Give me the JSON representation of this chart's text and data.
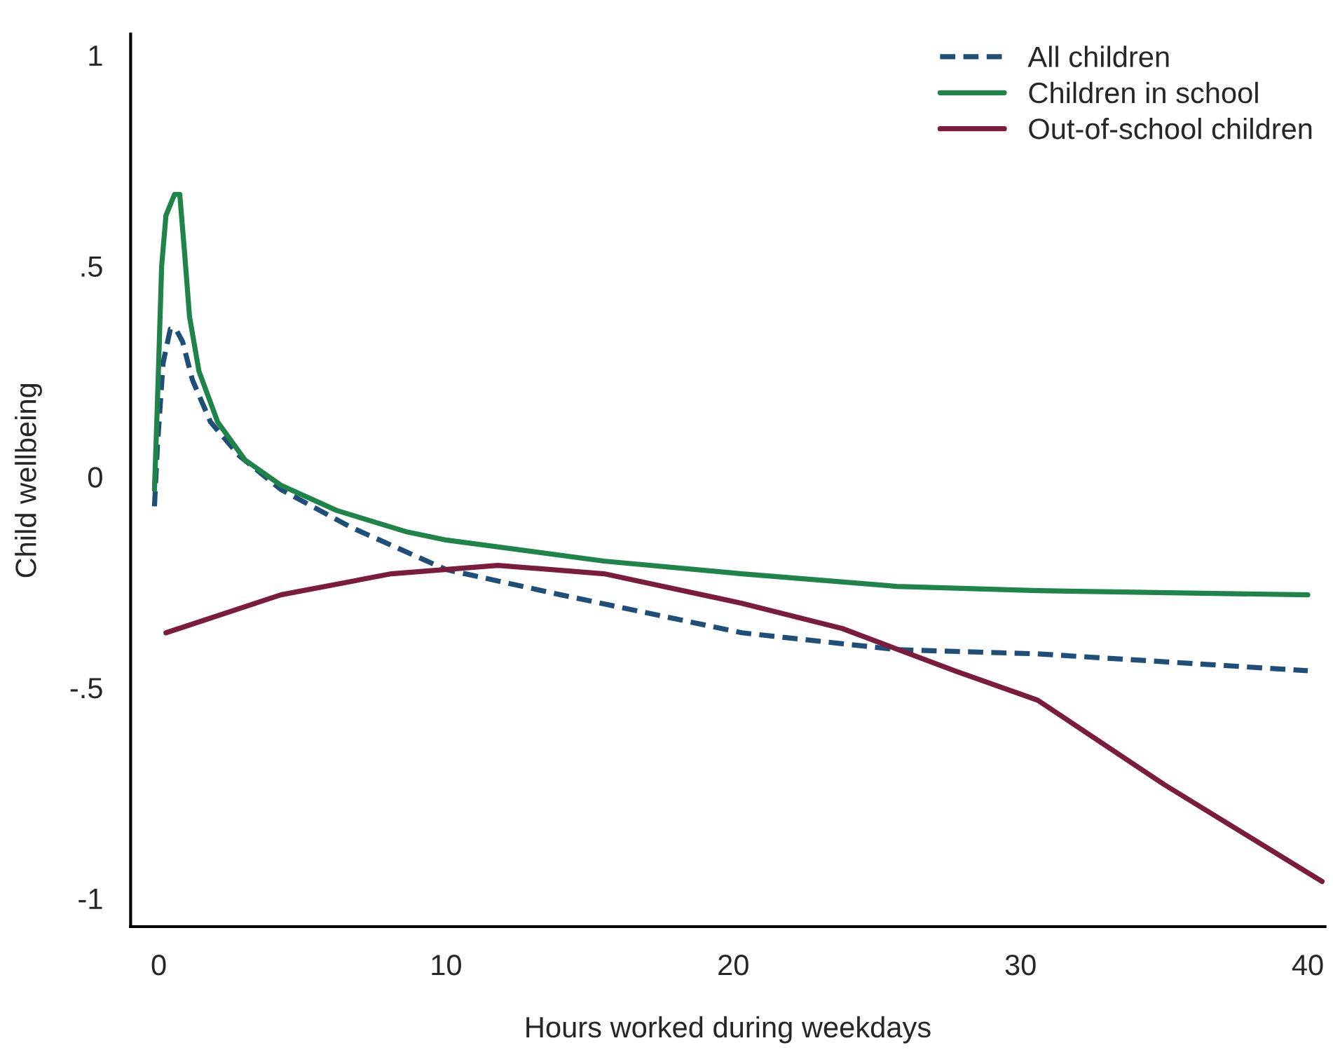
{
  "chart_data": {
    "type": "line",
    "xlabel": "Hours worked during weekdays",
    "ylabel": "Child wellbeing",
    "xlim": [
      -0.98,
      40.6
    ],
    "ylim": [
      -1.067,
      1.05
    ],
    "xticks": [
      0,
      10,
      20,
      30,
      40
    ],
    "yticks": [
      {
        "value": 1,
        "label": "1"
      },
      {
        "value": 0.5,
        "label": ".5"
      },
      {
        "value": 0,
        "label": "0"
      },
      {
        "value": -0.5,
        "label": "-.5"
      },
      {
        "value": -1,
        "label": "-1"
      }
    ],
    "legend": "top right",
    "grid": false,
    "series": [
      {
        "name": "All children",
        "color": "#1f4e79",
        "line_style": "dashed",
        "x": [
          -0.15,
          -0.05,
          0.15,
          0.4,
          0.6,
          0.83,
          1.17,
          1.8,
          2.8,
          4.25,
          6.7,
          10,
          14,
          20.3,
          25.7,
          30.6,
          40
        ],
        "values": [
          -0.07,
          0.07,
          0.27,
          0.35,
          0.35,
          0.32,
          0.23,
          0.13,
          0.05,
          -0.03,
          -0.12,
          -0.22,
          -0.28,
          -0.37,
          -0.41,
          -0.42,
          -0.46
        ]
      },
      {
        "name": "Children in school",
        "color": "#1e8449",
        "line_style": "solid",
        "x": [
          -0.15,
          -0.05,
          0.1,
          0.25,
          0.55,
          0.73,
          0.9,
          1.07,
          1.4,
          2.05,
          3.0,
          4.25,
          6.2,
          8.6,
          10,
          15.5,
          20.3,
          25.7,
          30.6,
          40
        ],
        "values": [
          -0.03,
          0.17,
          0.5,
          0.62,
          0.67,
          0.67,
          0.53,
          0.38,
          0.25,
          0.13,
          0.04,
          -0.02,
          -0.08,
          -0.13,
          -0.15,
          -0.2,
          -0.23,
          -0.26,
          -0.27,
          -0.28
        ]
      },
      {
        "name": "Out-of-school children",
        "color": "#7b1c3e",
        "line_style": "solid",
        "x": [
          0.25,
          4.25,
          8.1,
          11.8,
          15.5,
          20.3,
          23.8,
          27.7,
          30.6,
          35,
          40.5
        ],
        "values": [
          -0.37,
          -0.28,
          -0.23,
          -0.21,
          -0.23,
          -0.3,
          -0.36,
          -0.46,
          -0.53,
          -0.73,
          -0.96
        ]
      }
    ]
  }
}
